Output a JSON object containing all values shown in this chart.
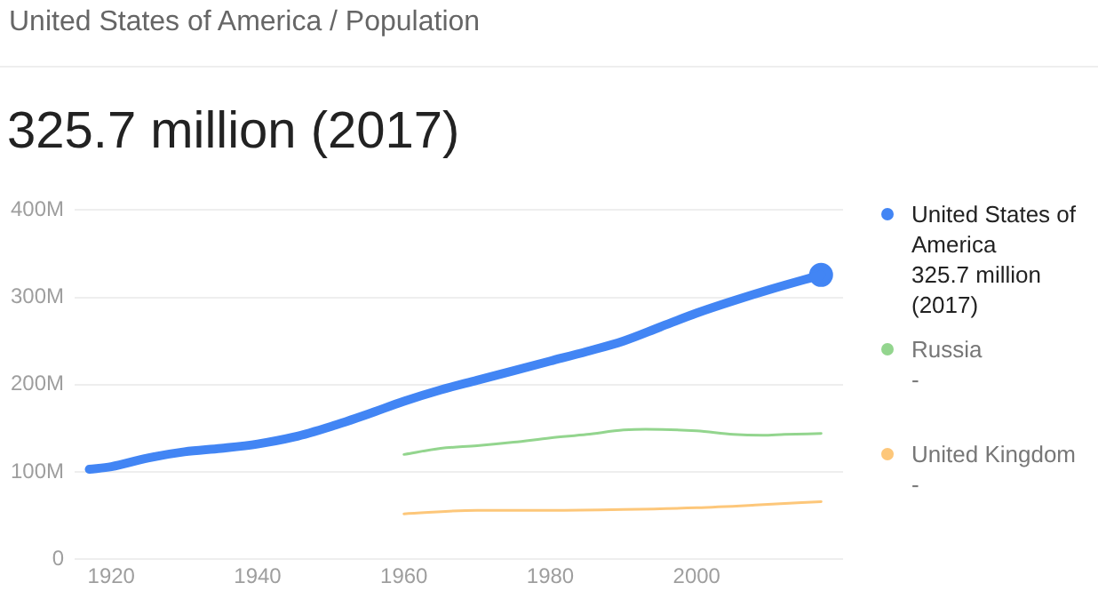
{
  "chart_data": {
    "type": "line",
    "title": "United States of America / Population",
    "subtitle": "325.7 million (2017)",
    "xlim": [
      1915,
      2020
    ],
    "xticks": [
      1920,
      1940,
      1960,
      1980,
      2000
    ],
    "ylim": [
      0,
      400
    ],
    "yticks": [
      {
        "value": 0,
        "label": "0"
      },
      {
        "value": 100,
        "label": "100M"
      },
      {
        "value": 200,
        "label": "200M"
      },
      {
        "value": 300,
        "label": "300M"
      },
      {
        "value": 400,
        "label": "400M"
      }
    ],
    "grid": "y",
    "legend": "right",
    "marker": "none",
    "annotations": [
      "325.7 million (2017)",
      "-",
      "-"
    ],
    "series": [
      {
        "name": "United States of America",
        "color": "#4285f4",
        "x": [
          1917,
          1920,
          1925,
          1930,
          1935,
          1940,
          1945,
          1950,
          1955,
          1960,
          1965,
          1970,
          1975,
          1980,
          1985,
          1990,
          1995,
          2000,
          2005,
          2010,
          2017
        ],
        "values": [
          103,
          106,
          116,
          123,
          127,
          132,
          140,
          152,
          166,
          181,
          194,
          205,
          216,
          227,
          238,
          250,
          266,
          282,
          296,
          309,
          325.7
        ]
      },
      {
        "name": "Russia",
        "color": "#93d58e",
        "x": [
          1960,
          1965,
          1970,
          1975,
          1980,
          1985,
          1990,
          1993,
          2000,
          2005,
          2009,
          2012,
          2017
        ],
        "values": [
          120,
          127,
          130,
          134,
          139,
          143,
          148,
          149,
          147,
          143,
          142,
          143,
          144
        ]
      },
      {
        "name": "United Kingdom",
        "color": "#fdc77a",
        "x": [
          1960,
          1970,
          1980,
          1990,
          2000,
          2008,
          2017
        ],
        "values": [
          52,
          56,
          56,
          57,
          59,
          62,
          66
        ]
      },
      {
        "type": "scatter",
        "color": "#4285f4",
        "marker": "circle",
        "x": [
          2017
        ],
        "values": [
          325.7
        ]
      }
    ]
  }
}
